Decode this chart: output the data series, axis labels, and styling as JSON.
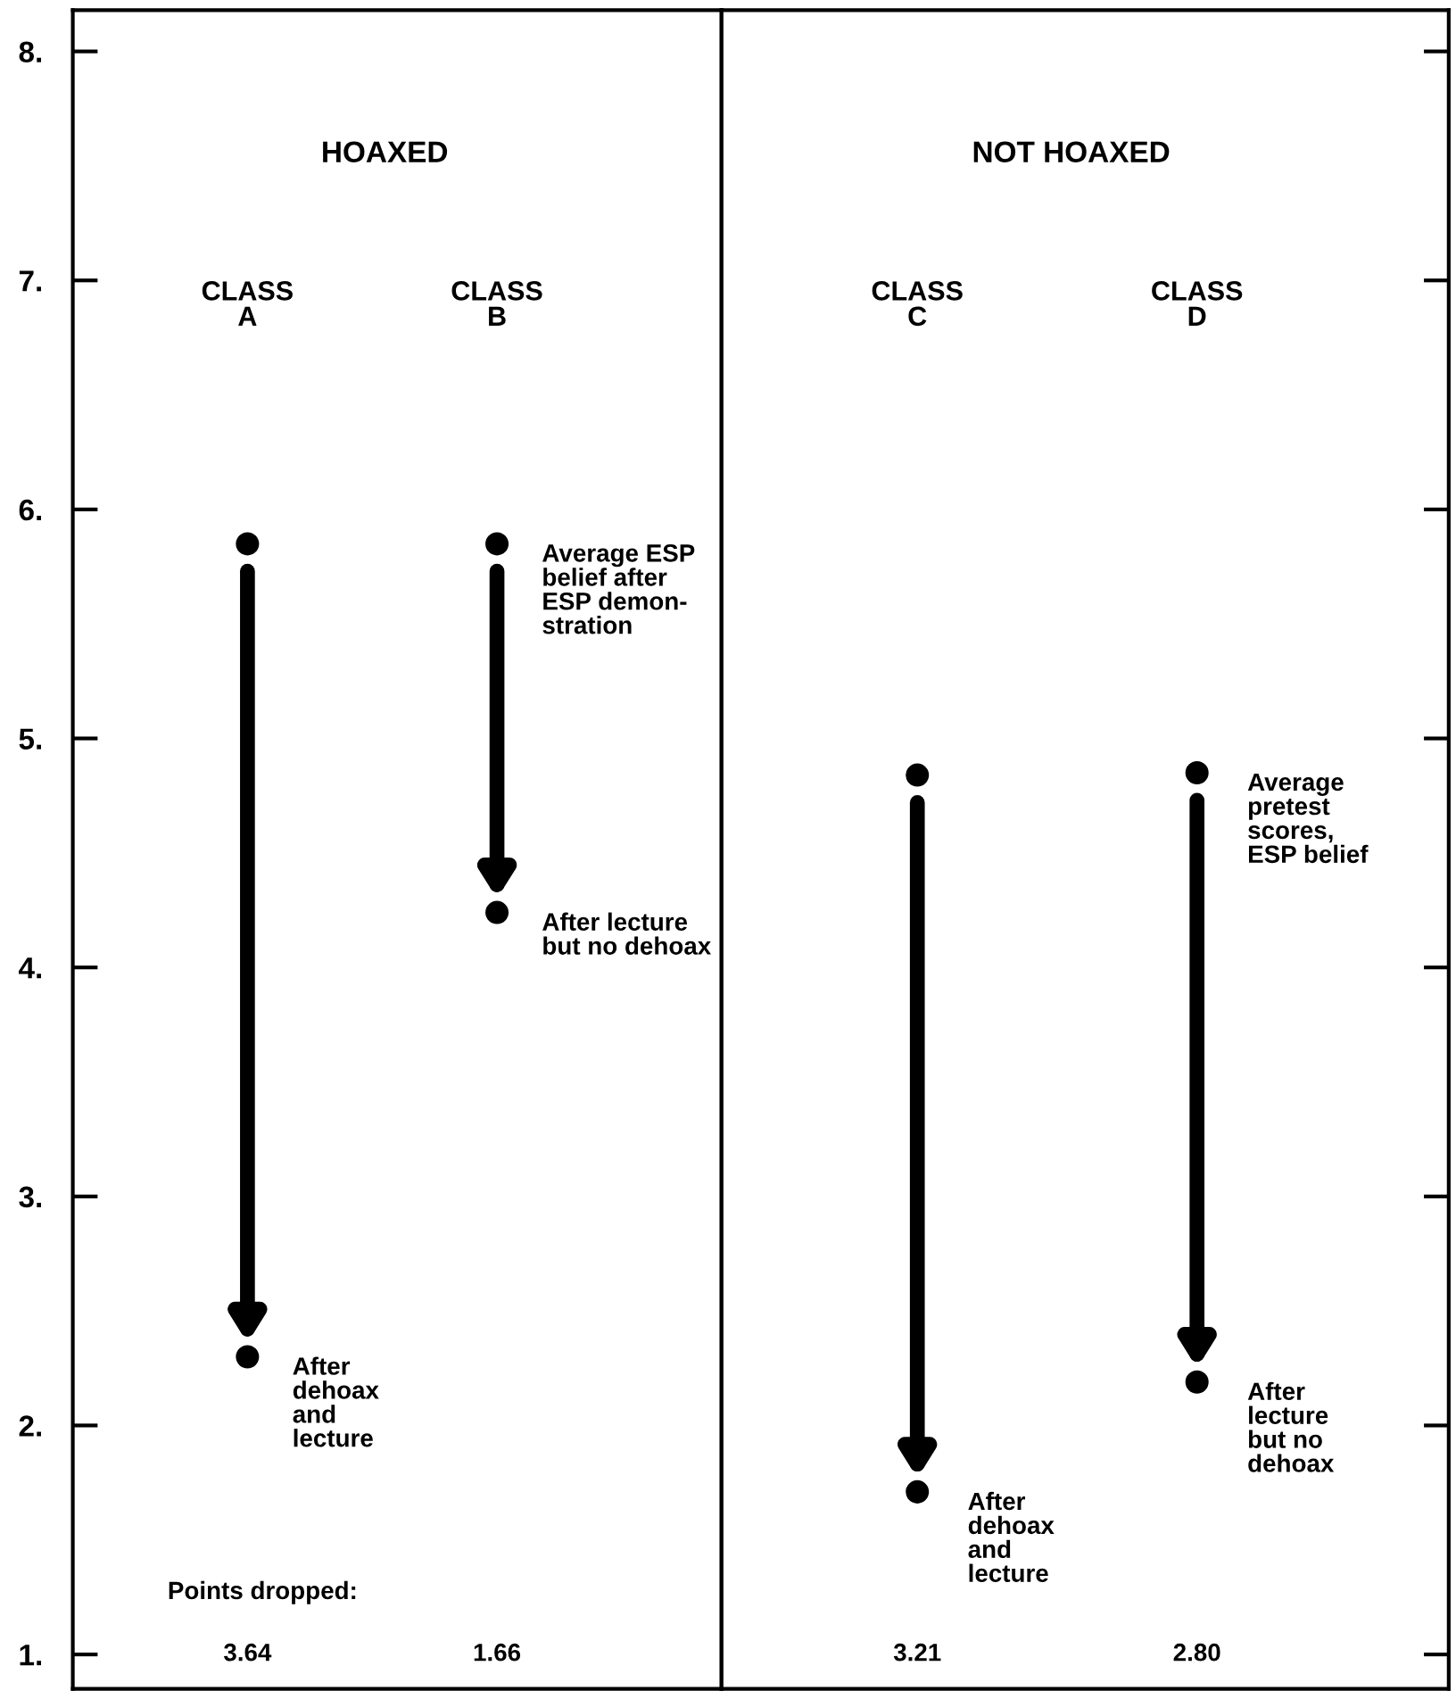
{
  "chart_data": [
    {
      "type": "scatter",
      "title": "HOAXED",
      "categories": [
        "CLASS\nA",
        "CLASS\nB"
      ],
      "series": [
        {
          "color": "#000000",
          "values": [
            5.85,
            5.85
          ]
        },
        {
          "color": "#000000",
          "values": [
            2.3,
            4.24
          ]
        }
      ],
      "marker": "circle",
      "ylim": [
        0.85,
        8.18
      ],
      "yticks": [
        {
          "value": 1,
          "label": "1."
        },
        {
          "value": 2,
          "label": "2."
        },
        {
          "value": 3,
          "label": "3."
        },
        {
          "value": 4,
          "label": "4."
        },
        {
          "value": 5,
          "label": "5."
        },
        {
          "value": 6,
          "label": "6."
        },
        {
          "value": 7,
          "label": "7."
        },
        {
          "value": 8,
          "label": "8."
        }
      ],
      "tick_labels": "y",
      "annotations": [
        {
          "text": "Average ESP\nbelief after\nESP demon-\nstration",
          "x": "CLASS\nB",
          "y": 5.85
        },
        {
          "text": "After lecture\nbut no dehoax",
          "x": "CLASS\nB",
          "y": 4.24
        },
        {
          "text": "After\ndehoax\nand\nlecture",
          "x": "CLASS\nA",
          "y": 2.3
        },
        "Points dropped:",
        "3.64",
        "1.66"
      ]
    },
    {
      "type": "scatter",
      "title": "NOT HOAXED",
      "categories": [
        "CLASS\nC",
        "CLASS\nD"
      ],
      "series": [
        {
          "color": "#000000",
          "values": [
            4.84,
            4.85
          ]
        },
        {
          "color": "#000000",
          "values": [
            1.71,
            2.19
          ]
        }
      ],
      "marker": "circle",
      "ylim": [
        0.85,
        8.18
      ],
      "yticks": [
        1,
        2,
        3,
        4,
        5,
        6,
        7,
        8
      ],
      "tick_labels": false,
      "annotations": [
        {
          "text": "Average\npretest\nscores,\nESP belief",
          "x": "CLASS\nD",
          "y": 4.85
        },
        {
          "text": "After\nlecture\nbut no\ndehoax",
          "x": "CLASS\nD",
          "y": 2.19
        },
        {
          "text": "After\ndehoax\nand\nlecture",
          "x": "CLASS\nC",
          "y": 1.71
        },
        "3.21",
        "2.80"
      ]
    }
  ]
}
